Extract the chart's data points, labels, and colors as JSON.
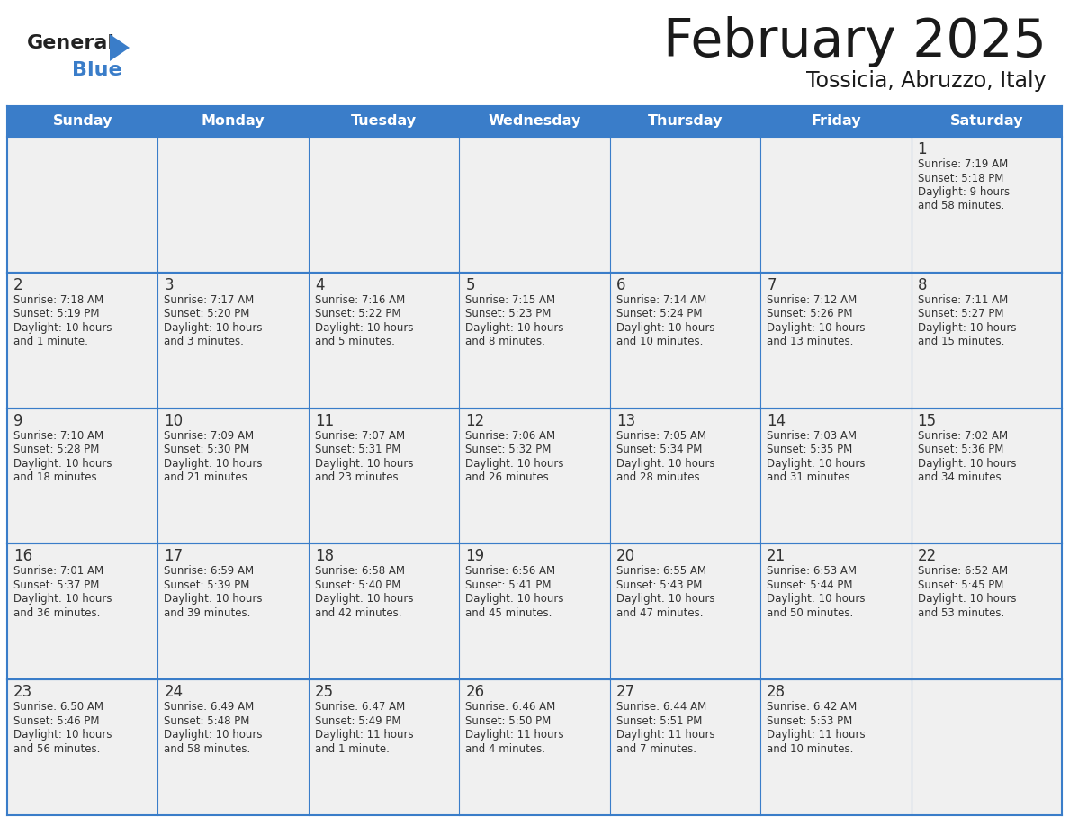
{
  "title": "February 2025",
  "subtitle": "Tossicia, Abruzzo, Italy",
  "days_of_week": [
    "Sunday",
    "Monday",
    "Tuesday",
    "Wednesday",
    "Thursday",
    "Friday",
    "Saturday"
  ],
  "header_bg": "#3A7DC9",
  "header_text": "#FFFFFF",
  "cell_bg": "#F0F0F0",
  "line_color": "#3A7DC9",
  "day_num_color": "#333333",
  "info_color": "#333333",
  "logo_general_color": "#222222",
  "logo_blue_color": "#3A7DC9",
  "calendar": [
    [
      null,
      null,
      null,
      null,
      null,
      null,
      1
    ],
    [
      2,
      3,
      4,
      5,
      6,
      7,
      8
    ],
    [
      9,
      10,
      11,
      12,
      13,
      14,
      15
    ],
    [
      16,
      17,
      18,
      19,
      20,
      21,
      22
    ],
    [
      23,
      24,
      25,
      26,
      27,
      28,
      null
    ]
  ],
  "day_data": {
    "1": {
      "sunrise": "7:19 AM",
      "sunset": "5:18 PM",
      "daylight_line1": "Daylight: 9 hours",
      "daylight_line2": "and 58 minutes."
    },
    "2": {
      "sunrise": "7:18 AM",
      "sunset": "5:19 PM",
      "daylight_line1": "Daylight: 10 hours",
      "daylight_line2": "and 1 minute."
    },
    "3": {
      "sunrise": "7:17 AM",
      "sunset": "5:20 PM",
      "daylight_line1": "Daylight: 10 hours",
      "daylight_line2": "and 3 minutes."
    },
    "4": {
      "sunrise": "7:16 AM",
      "sunset": "5:22 PM",
      "daylight_line1": "Daylight: 10 hours",
      "daylight_line2": "and 5 minutes."
    },
    "5": {
      "sunrise": "7:15 AM",
      "sunset": "5:23 PM",
      "daylight_line1": "Daylight: 10 hours",
      "daylight_line2": "and 8 minutes."
    },
    "6": {
      "sunrise": "7:14 AM",
      "sunset": "5:24 PM",
      "daylight_line1": "Daylight: 10 hours",
      "daylight_line2": "and 10 minutes."
    },
    "7": {
      "sunrise": "7:12 AM",
      "sunset": "5:26 PM",
      "daylight_line1": "Daylight: 10 hours",
      "daylight_line2": "and 13 minutes."
    },
    "8": {
      "sunrise": "7:11 AM",
      "sunset": "5:27 PM",
      "daylight_line1": "Daylight: 10 hours",
      "daylight_line2": "and 15 minutes."
    },
    "9": {
      "sunrise": "7:10 AM",
      "sunset": "5:28 PM",
      "daylight_line1": "Daylight: 10 hours",
      "daylight_line2": "and 18 minutes."
    },
    "10": {
      "sunrise": "7:09 AM",
      "sunset": "5:30 PM",
      "daylight_line1": "Daylight: 10 hours",
      "daylight_line2": "and 21 minutes."
    },
    "11": {
      "sunrise": "7:07 AM",
      "sunset": "5:31 PM",
      "daylight_line1": "Daylight: 10 hours",
      "daylight_line2": "and 23 minutes."
    },
    "12": {
      "sunrise": "7:06 AM",
      "sunset": "5:32 PM",
      "daylight_line1": "Daylight: 10 hours",
      "daylight_line2": "and 26 minutes."
    },
    "13": {
      "sunrise": "7:05 AM",
      "sunset": "5:34 PM",
      "daylight_line1": "Daylight: 10 hours",
      "daylight_line2": "and 28 minutes."
    },
    "14": {
      "sunrise": "7:03 AM",
      "sunset": "5:35 PM",
      "daylight_line1": "Daylight: 10 hours",
      "daylight_line2": "and 31 minutes."
    },
    "15": {
      "sunrise": "7:02 AM",
      "sunset": "5:36 PM",
      "daylight_line1": "Daylight: 10 hours",
      "daylight_line2": "and 34 minutes."
    },
    "16": {
      "sunrise": "7:01 AM",
      "sunset": "5:37 PM",
      "daylight_line1": "Daylight: 10 hours",
      "daylight_line2": "and 36 minutes."
    },
    "17": {
      "sunrise": "6:59 AM",
      "sunset": "5:39 PM",
      "daylight_line1": "Daylight: 10 hours",
      "daylight_line2": "and 39 minutes."
    },
    "18": {
      "sunrise": "6:58 AM",
      "sunset": "5:40 PM",
      "daylight_line1": "Daylight: 10 hours",
      "daylight_line2": "and 42 minutes."
    },
    "19": {
      "sunrise": "6:56 AM",
      "sunset": "5:41 PM",
      "daylight_line1": "Daylight: 10 hours",
      "daylight_line2": "and 45 minutes."
    },
    "20": {
      "sunrise": "6:55 AM",
      "sunset": "5:43 PM",
      "daylight_line1": "Daylight: 10 hours",
      "daylight_line2": "and 47 minutes."
    },
    "21": {
      "sunrise": "6:53 AM",
      "sunset": "5:44 PM",
      "daylight_line1": "Daylight: 10 hours",
      "daylight_line2": "and 50 minutes."
    },
    "22": {
      "sunrise": "6:52 AM",
      "sunset": "5:45 PM",
      "daylight_line1": "Daylight: 10 hours",
      "daylight_line2": "and 53 minutes."
    },
    "23": {
      "sunrise": "6:50 AM",
      "sunset": "5:46 PM",
      "daylight_line1": "Daylight: 10 hours",
      "daylight_line2": "and 56 minutes."
    },
    "24": {
      "sunrise": "6:49 AM",
      "sunset": "5:48 PM",
      "daylight_line1": "Daylight: 10 hours",
      "daylight_line2": "and 58 minutes."
    },
    "25": {
      "sunrise": "6:47 AM",
      "sunset": "5:49 PM",
      "daylight_line1": "Daylight: 11 hours",
      "daylight_line2": "and 1 minute."
    },
    "26": {
      "sunrise": "6:46 AM",
      "sunset": "5:50 PM",
      "daylight_line1": "Daylight: 11 hours",
      "daylight_line2": "and 4 minutes."
    },
    "27": {
      "sunrise": "6:44 AM",
      "sunset": "5:51 PM",
      "daylight_line1": "Daylight: 11 hours",
      "daylight_line2": "and 7 minutes."
    },
    "28": {
      "sunrise": "6:42 AM",
      "sunset": "5:53 PM",
      "daylight_line1": "Daylight: 11 hours",
      "daylight_line2": "and 10 minutes."
    }
  }
}
